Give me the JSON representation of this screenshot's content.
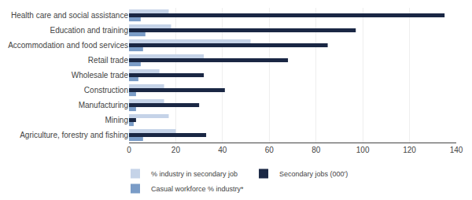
{
  "chart_data": {
    "type": "bar",
    "orientation": "horizontal",
    "categories": [
      "Health care and social assistance",
      "Education and training",
      "Accommodation and food services",
      "Retail trade",
      "Wholesale trade",
      "Construction",
      "Manufacturing",
      "Mining",
      "Agriculture, forestry and fishing"
    ],
    "series": [
      {
        "name": "% industry in secondary job",
        "color": "#c5d3e8",
        "values": [
          17,
          18,
          52,
          32,
          13,
          15,
          15,
          17,
          20
        ]
      },
      {
        "name": "Secondary jobs (000')",
        "color": "#1a2744",
        "values": [
          135,
          97,
          85,
          68,
          32,
          41,
          30,
          3,
          33
        ]
      },
      {
        "name": "Casual workforce % industry*",
        "color": "#7a9cc7",
        "values": [
          5,
          7,
          6,
          5,
          4,
          3,
          3,
          2,
          6
        ]
      }
    ],
    "xlim": [
      0,
      140
    ],
    "xticks": [
      0,
      20,
      40,
      60,
      80,
      100,
      120,
      140
    ],
    "grid": true,
    "legend": "bottom"
  }
}
